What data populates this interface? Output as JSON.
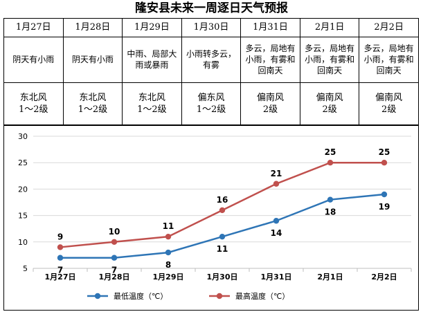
{
  "title": "隆安县未来一周逐日天气预报",
  "forecast": [
    {
      "date": "1月27日",
      "weather": "阴天有小雨",
      "wind": [
        "东北风",
        "1～2级"
      ]
    },
    {
      "date": "1月28日",
      "weather": "阴天有小雨",
      "wind": [
        "东北风",
        "1～2级"
      ]
    },
    {
      "date": "1月29日",
      "weather": "中雨、局部大雨或暴雨",
      "wind": [
        "东北风",
        "1～2级"
      ]
    },
    {
      "date": "1月30日",
      "weather": "小雨转多云，有雾",
      "wind": [
        "偏东风",
        "1～2级"
      ]
    },
    {
      "date": "1月31日",
      "weather": "多云，局地有小雨，有雾和回南天",
      "wind": [
        "偏南风",
        "2级"
      ]
    },
    {
      "date": "2月1日",
      "weather": "多云，局地有小雨，有雾和回南天",
      "wind": [
        "偏南风",
        "2级"
      ]
    },
    {
      "date": "2月2日",
      "weather": "多云，局地有小雨，有雾和回南天",
      "wind": [
        "偏南风",
        "2级"
      ]
    }
  ],
  "chart_data": {
    "type": "line",
    "categories": [
      "1月27日",
      "1月28日",
      "1月29日",
      "1月30日",
      "1月31日",
      "2月1日",
      "2月2日"
    ],
    "series": [
      {
        "name": "最低温度（℃）",
        "values": [
          7,
          7,
          8,
          11,
          14,
          18,
          19
        ],
        "color": "#2e75b6",
        "label_pos": "below"
      },
      {
        "name": "最高温度（℃）",
        "values": [
          9,
          10,
          11,
          16,
          21,
          25,
          25
        ],
        "color": "#c0504d",
        "label_pos": "above"
      }
    ],
    "ylim": [
      5,
      30
    ],
    "yticks": [
      5,
      10,
      15,
      20,
      25,
      30
    ],
    "grid": true,
    "legend": "bottom",
    "title": "",
    "xlabel": "",
    "ylabel": ""
  }
}
